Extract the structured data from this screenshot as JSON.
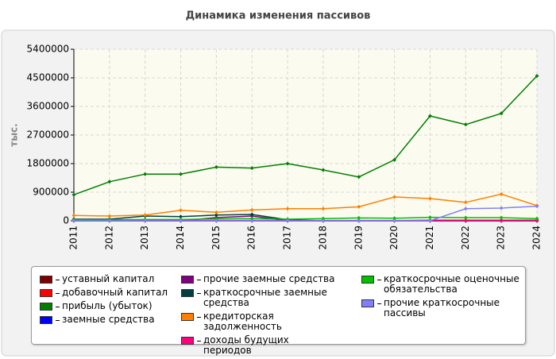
{
  "chart_data": {
    "type": "line",
    "title": "Динамика изменения пассивов",
    "y_label": "тыс.",
    "categories": [
      "2011",
      "2012",
      "2013",
      "2014",
      "2015",
      "2016",
      "2017",
      "2018",
      "2019",
      "2020",
      "2021",
      "2022",
      "2023",
      "2024"
    ],
    "ylim": [
      0,
      5400000
    ],
    "yticks": [
      0,
      900000,
      1800000,
      2700000,
      3600000,
      4500000,
      5400000
    ],
    "grid": true,
    "series": [
      {
        "name": "уставный капитал",
        "color": "#800000",
        "values": [
          10000,
          10000,
          10000,
          10000,
          10000,
          10000,
          10000,
          10000,
          10000,
          10000,
          10000,
          10000,
          10000,
          10000
        ]
      },
      {
        "name": "добавочный капитал",
        "color": "#ff0000",
        "values": [
          0,
          0,
          0,
          0,
          0,
          0,
          0,
          0,
          0,
          0,
          20000,
          20000,
          20000,
          20000
        ]
      },
      {
        "name": "прибыль (убыток)",
        "color": "#008000",
        "values": [
          820000,
          1230000,
          1470000,
          1470000,
          1690000,
          1660000,
          1800000,
          1600000,
          1380000,
          1920000,
          3300000,
          3030000,
          3380000,
          4560000
        ]
      },
      {
        "name": "заемные средства",
        "color": "#0000ff",
        "values": [
          0,
          0,
          0,
          0,
          0,
          0,
          0,
          0,
          0,
          0,
          0,
          0,
          0,
          0
        ]
      },
      {
        "name": "прочие заемные средства",
        "color": "#800080",
        "values": [
          0,
          0,
          0,
          0,
          100000,
          150000,
          0,
          0,
          0,
          0,
          0,
          0,
          0,
          0
        ]
      },
      {
        "name": "краткосрочные заемные средства",
        "color": "#004040",
        "values": [
          50000,
          50000,
          150000,
          130000,
          180000,
          200000,
          30000,
          0,
          0,
          0,
          0,
          0,
          0,
          0
        ]
      },
      {
        "name": "кредиторская задолженность",
        "color": "#ff8000",
        "values": [
          170000,
          150000,
          180000,
          330000,
          270000,
          340000,
          380000,
          380000,
          440000,
          750000,
          700000,
          580000,
          840000,
          480000
        ]
      },
      {
        "name": "доходы будущих периодов",
        "color": "#ff0080",
        "values": [
          0,
          0,
          0,
          0,
          0,
          0,
          0,
          0,
          0,
          0,
          0,
          0,
          0,
          0
        ]
      },
      {
        "name": "краткосрочные оценочные обязательства",
        "color": "#00c000",
        "values": [
          30000,
          30000,
          40000,
          40000,
          60000,
          70000,
          50000,
          70000,
          90000,
          80000,
          110000,
          100000,
          100000,
          70000
        ]
      },
      {
        "name": "прочие краткосрочные пассивы",
        "color": "#8080ff",
        "values": [
          0,
          0,
          0,
          0,
          0,
          0,
          0,
          0,
          0,
          0,
          0,
          380000,
          400000,
          460000
        ]
      }
    ]
  }
}
